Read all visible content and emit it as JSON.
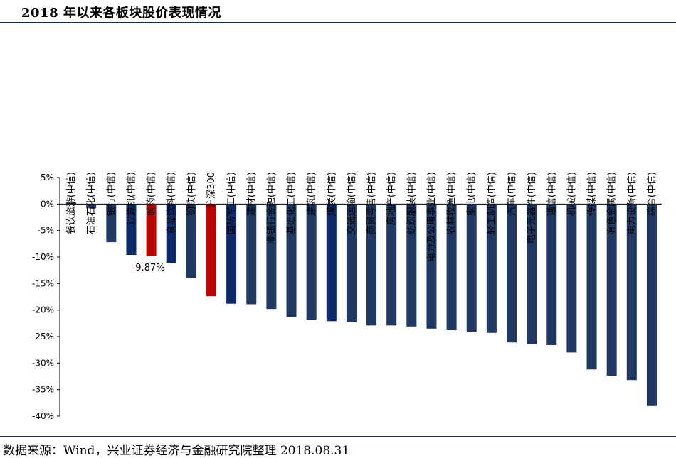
{
  "title": "2018 年以来各板块股价表现情况",
  "source": "数据来源：Wind，兴业证券经济与金融研究院整理 2018.08.31",
  "colors": {
    "bar": "#1f3864",
    "highlight_dark": "#0d2a6b",
    "highlight_red": "#c00000",
    "rule": "#1b2a55"
  },
  "chart_data": {
    "type": "bar",
    "categories": [
      "餐饮旅游(中信)",
      "石油石化(中信)",
      "银行(中信)",
      "计算机(中信)",
      "医药(中信)",
      "食品饮料(中信)",
      "钢铁(中信)",
      "沪深300",
      "国防军工(中信)",
      "建材(中信)",
      "非银行金融(中信)",
      "基础化工(中信)",
      "建筑(中信)",
      "煤炭(中信)",
      "交通运输(中信)",
      "商贸零售(中信)",
      "房地产(中信)",
      "纺织服装(中信)",
      "电力及公用事业(中信)",
      "农林牧渔(中信)",
      "家电(中信)",
      "轻工制造(中信)",
      "汽车(中信)",
      "电子元器件(中信)",
      "通信(中信)",
      "机械(中信)",
      "传媒(中信)",
      "有色金属(中信)",
      "电力设备(中信)",
      "综合(中信)"
    ],
    "values": [
      0.3,
      -0.8,
      -7.2,
      -9.6,
      -9.87,
      -11.1,
      -14.0,
      -17.4,
      -18.8,
      -18.9,
      -19.8,
      -21.3,
      -21.9,
      -22.1,
      -22.3,
      -22.9,
      -22.9,
      -23.1,
      -23.5,
      -23.8,
      -24.1,
      -24.3,
      -26.1,
      -26.4,
      -26.6,
      -28.0,
      -31.2,
      -32.4,
      -33.2,
      -38.1
    ],
    "bar_styles": [
      "normal",
      "normal",
      "normal",
      "dark",
      "red",
      "dark",
      "normal",
      "red",
      "dark",
      "normal",
      "normal",
      "normal",
      "normal",
      "dark",
      "normal",
      "normal",
      "normal",
      "normal",
      "normal",
      "normal",
      "normal",
      "normal",
      "normal",
      "normal",
      "normal",
      "normal",
      "normal",
      "normal",
      "normal",
      "normal"
    ],
    "ylim": [
      -40,
      5
    ],
    "yticks": [
      5,
      0,
      -5,
      -10,
      -15,
      -20,
      -25,
      -30,
      -35,
      -40
    ],
    "ytick_labels": [
      "5%",
      "0%",
      "-5%",
      "-10%",
      "-15%",
      "-20%",
      "-25%",
      "-30%",
      "-35%",
      "-40%"
    ],
    "annotation": {
      "text": "-9.87%",
      "category": "医药(中信)"
    },
    "xlabel": "",
    "ylabel": "",
    "grid": false,
    "legend": "none"
  }
}
